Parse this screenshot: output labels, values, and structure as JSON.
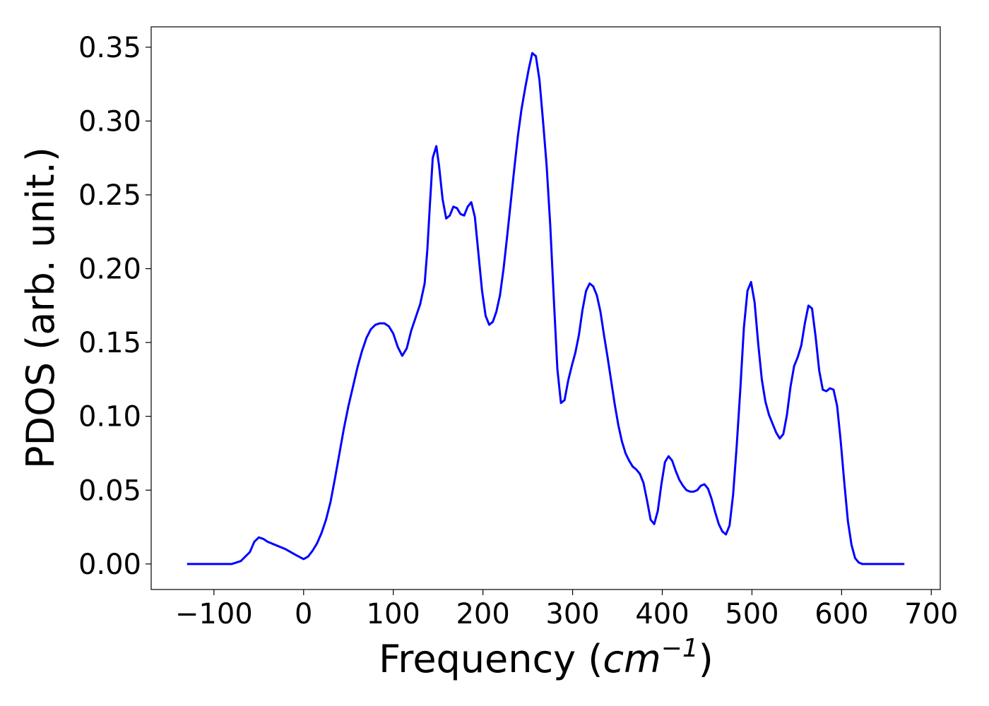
{
  "chart_data": {
    "type": "line",
    "xlabel": [
      "Frequency (",
      "cm",
      "−1",
      ")"
    ],
    "ylabel": "PDOS (arb. unit.)",
    "xlim": [
      -170,
      710
    ],
    "ylim": [
      -0.0173,
      0.3638
    ],
    "xticks": [
      {
        "value": -100,
        "label": "−100"
      },
      0,
      100,
      200,
      300,
      400,
      500,
      600,
      700
    ],
    "yticks": [
      {
        "value": 0,
        "label": "0.00"
      },
      {
        "value": 0.05,
        "label": "0.05"
      },
      {
        "value": 0.1,
        "label": "0.10"
      },
      {
        "value": 0.15,
        "label": "0.15"
      },
      {
        "value": 0.2,
        "label": "0.20"
      },
      {
        "value": 0.25,
        "label": "0.25"
      },
      {
        "value": 0.3,
        "label": "0.30"
      },
      {
        "value": 0.35,
        "label": "0.35"
      }
    ],
    "grid": false,
    "series": [
      {
        "color": "#0000ff",
        "x": [
          -130,
          -80,
          -70,
          -60,
          -55,
          -50,
          -45,
          -40,
          -30,
          -20,
          -10,
          0,
          5,
          10,
          15,
          20,
          25,
          30,
          35,
          40,
          45,
          50,
          55,
          60,
          65,
          70,
          75,
          80,
          85,
          90,
          95,
          100,
          105,
          110,
          115,
          120,
          125,
          130,
          135,
          138,
          141,
          144,
          148,
          151,
          155,
          159,
          163,
          167,
          171,
          175,
          179,
          183,
          187,
          191,
          195,
          199,
          203,
          207,
          211,
          215,
          219,
          223,
          227,
          231,
          235,
          239,
          243,
          247,
          251,
          255,
          259,
          263,
          267,
          271,
          275,
          279,
          283,
          287,
          291,
          295,
          299,
          303,
          307,
          311,
          315,
          319,
          323,
          327,
          331,
          335,
          339,
          343,
          347,
          351,
          355,
          359,
          363,
          367,
          371,
          375,
          379,
          383,
          387,
          391,
          395,
          399,
          403,
          407,
          411,
          415,
          419,
          423,
          427,
          431,
          435,
          439,
          443,
          447,
          451,
          455,
          459,
          463,
          467,
          471,
          475,
          479,
          483,
          487,
          491,
          495,
          499,
          503,
          507,
          511,
          515,
          519,
          523,
          527,
          531,
          535,
          539,
          543,
          547,
          551,
          555,
          559,
          563,
          567,
          571,
          575,
          579,
          583,
          587,
          591,
          595,
          599,
          603,
          607,
          611,
          615,
          619,
          623,
          670
        ],
        "values": [
          0,
          0,
          0.002,
          0.008,
          0.015,
          0.018,
          0.017,
          0.015,
          0.0125,
          0.01,
          0.0065,
          0.0033,
          0.005,
          0.009,
          0.014,
          0.021,
          0.03,
          0.042,
          0.058,
          0.075,
          0.092,
          0.107,
          0.12,
          0.133,
          0.144,
          0.153,
          0.159,
          0.162,
          0.163,
          0.163,
          0.161,
          0.156,
          0.147,
          0.141,
          0.146,
          0.158,
          0.167,
          0.176,
          0.19,
          0.213,
          0.245,
          0.275,
          0.283,
          0.27,
          0.247,
          0.234,
          0.236,
          0.242,
          0.241,
          0.237,
          0.236,
          0.242,
          0.245,
          0.235,
          0.21,
          0.185,
          0.168,
          0.162,
          0.164,
          0.171,
          0.182,
          0.2,
          0.222,
          0.245,
          0.268,
          0.29,
          0.308,
          0.322,
          0.335,
          0.346,
          0.344,
          0.328,
          0.3,
          0.27,
          0.23,
          0.18,
          0.132,
          0.109,
          0.111,
          0.124,
          0.134,
          0.143,
          0.155,
          0.172,
          0.185,
          0.19,
          0.188,
          0.182,
          0.171,
          0.155,
          0.14,
          0.124,
          0.108,
          0.094,
          0.083,
          0.075,
          0.07,
          0.066,
          0.064,
          0.061,
          0.055,
          0.043,
          0.03,
          0.027,
          0.036,
          0.054,
          0.069,
          0.073,
          0.07,
          0.063,
          0.057,
          0.053,
          0.05,
          0.049,
          0.049,
          0.05,
          0.053,
          0.054,
          0.051,
          0.044,
          0.035,
          0.027,
          0.022,
          0.02,
          0.026,
          0.047,
          0.08,
          0.118,
          0.16,
          0.185,
          0.191,
          0.177,
          0.149,
          0.125,
          0.11,
          0.101,
          0.095,
          0.089,
          0.085,
          0.088,
          0.101,
          0.12,
          0.134,
          0.14,
          0.148,
          0.163,
          0.175,
          0.173,
          0.154,
          0.131,
          0.118,
          0.117,
          0.119,
          0.118,
          0.107,
          0.083,
          0.055,
          0.029,
          0.013,
          0.004,
          0.001,
          0,
          0
        ]
      }
    ]
  }
}
